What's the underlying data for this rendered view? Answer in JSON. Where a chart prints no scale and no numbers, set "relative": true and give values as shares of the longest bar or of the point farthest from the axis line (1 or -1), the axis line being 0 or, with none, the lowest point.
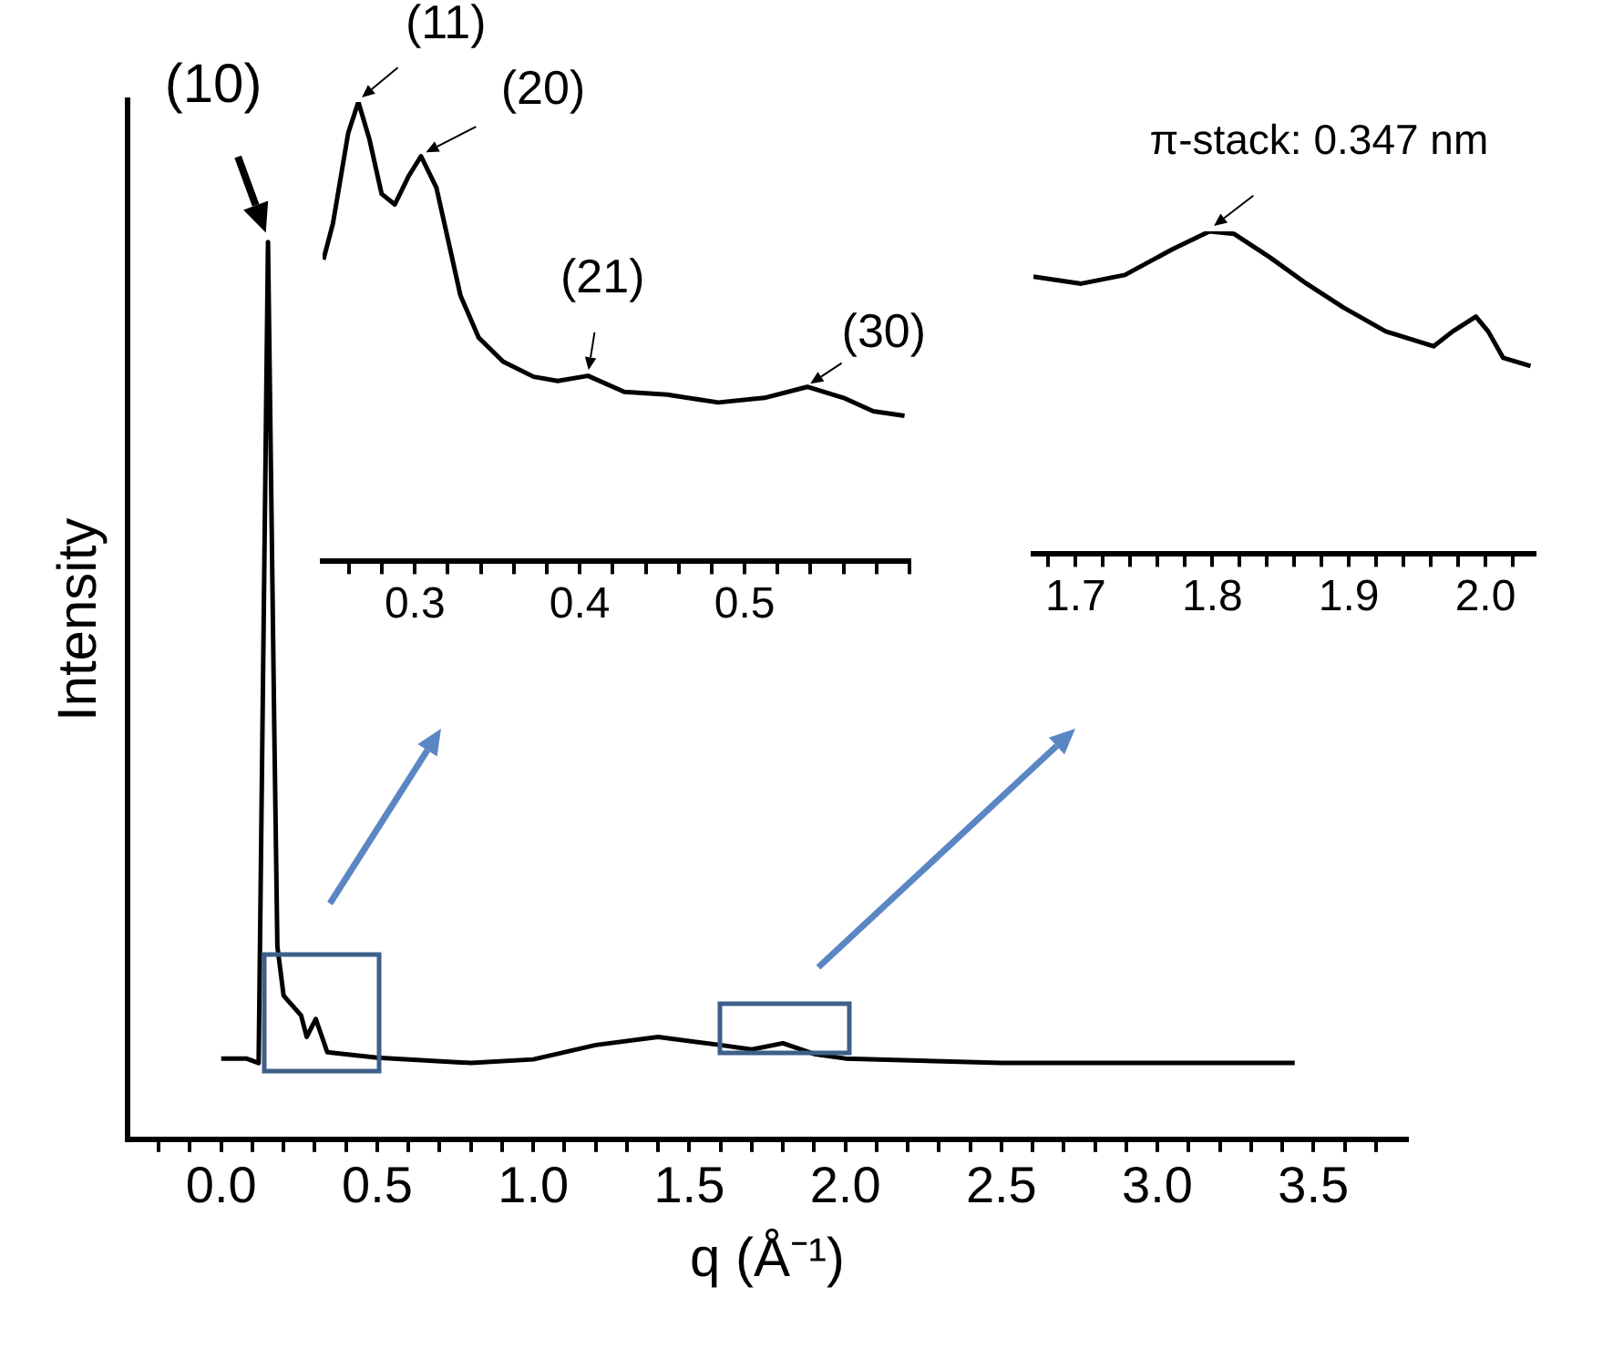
{
  "chart_data": [
    {
      "type": "line",
      "xlabel": "q (Å⁻¹)",
      "ylabel": "Intensity",
      "relative": true,
      "color": "#000000",
      "marker": "none",
      "x": [
        0.0,
        0.08,
        0.12,
        0.15,
        0.17,
        0.18,
        0.2,
        0.256,
        0.274,
        0.303,
        0.34,
        0.5,
        0.8,
        1.0,
        1.2,
        1.4,
        1.6,
        1.7,
        1.8,
        1.9,
        2.0,
        2.5,
        3.0,
        3.44
      ],
      "values": [
        0.09,
        0.09,
        0.085,
        1,
        0.46,
        0.215,
        0.16,
        0.138,
        0.114,
        0.134,
        0.097,
        0.091,
        0.085,
        0.089,
        0.105,
        0.114,
        0.105,
        0.1,
        0.107,
        0.095,
        0.09,
        0.085,
        0.085,
        0.085
      ],
      "xlim": [
        -0.3,
        3.8
      ],
      "xticks": [
        {
          "value": -0.2,
          "label": null
        },
        {
          "value": -0.1,
          "label": null
        },
        {
          "value": 0,
          "label": "0.0"
        },
        {
          "value": 0.1,
          "label": null
        },
        {
          "value": 0.2,
          "label": null
        },
        {
          "value": 0.3,
          "label": null
        },
        {
          "value": 0.4,
          "label": null
        },
        0.5,
        {
          "value": 0.6,
          "label": null
        },
        {
          "value": 0.7,
          "label": null
        },
        {
          "value": 0.8,
          "label": null
        },
        {
          "value": 0.9,
          "label": null
        },
        {
          "value": 1,
          "label": "1.0"
        },
        {
          "value": 1.1,
          "label": null
        },
        {
          "value": 1.2,
          "label": null
        },
        {
          "value": 1.3,
          "label": null
        },
        {
          "value": 1.4,
          "label": null
        },
        1.5,
        {
          "value": 1.6,
          "label": null
        },
        {
          "value": 1.7,
          "label": null
        },
        {
          "value": 1.8,
          "label": null
        },
        {
          "value": 1.9,
          "label": null
        },
        {
          "value": 2,
          "label": "2.0"
        },
        {
          "value": 2.1,
          "label": null
        },
        {
          "value": 2.2,
          "label": null
        },
        {
          "value": 2.3,
          "label": null
        },
        {
          "value": 2.4,
          "label": null
        },
        2.5,
        {
          "value": 2.6,
          "label": null
        },
        {
          "value": 2.7,
          "label": null
        },
        {
          "value": 2.8,
          "label": null
        },
        {
          "value": 2.9,
          "label": null
        },
        {
          "value": 3,
          "label": "3.0"
        },
        {
          "value": 3.1,
          "label": null
        },
        {
          "value": 3.2,
          "label": null
        },
        {
          "value": 3.3,
          "label": null
        },
        {
          "value": 3.4,
          "label": null
        },
        3.5,
        {
          "value": 3.6,
          "label": null
        },
        {
          "value": 3.7,
          "label": null
        }
      ],
      "annotations": [
        {
          "text": "(10)",
          "x": 0.15,
          "y": 1
        }
      ]
    },
    {
      "type": "line",
      "relative": true,
      "color": "#000000",
      "marker": "none",
      "x": [
        0.2445,
        0.2503,
        0.2595,
        0.2657,
        0.2724,
        0.2798,
        0.2878,
        0.2964,
        0.3037,
        0.313,
        0.3203,
        0.3276,
        0.3387,
        0.3535,
        0.372,
        0.3866,
        0.405,
        0.427,
        0.453,
        0.484,
        0.512,
        0.538,
        0.56,
        0.578,
        0.597
      ],
      "values": [
        0.657,
        0.736,
        0.932,
        1,
        0.919,
        0.8,
        0.777,
        0.84,
        0.882,
        0.814,
        0.697,
        0.579,
        0.487,
        0.435,
        0.402,
        0.393,
        0.404,
        0.369,
        0.363,
        0.346,
        0.356,
        0.38,
        0.356,
        0.327,
        0.317
      ],
      "xlim": [
        0.244,
        0.6
      ],
      "xticks": [
        {
          "value": 0.26,
          "label": null
        },
        {
          "value": 0.28,
          "label": null
        },
        0.3,
        {
          "value": 0.32,
          "label": null
        },
        {
          "value": 0.34,
          "label": null
        },
        {
          "value": 0.36,
          "label": null
        },
        {
          "value": 0.38,
          "label": null
        },
        0.4,
        {
          "value": 0.42,
          "label": null
        },
        {
          "value": 0.44,
          "label": null
        },
        {
          "value": 0.46,
          "label": null
        },
        {
          "value": 0.48,
          "label": null
        },
        0.5,
        {
          "value": 0.52,
          "label": null
        },
        {
          "value": 0.54,
          "label": null
        },
        {
          "value": 0.56,
          "label": null
        },
        {
          "value": 0.58,
          "label": null
        },
        {
          "value": 0.6,
          "label": null
        }
      ],
      "annotations": [
        {
          "text": "(11)",
          "x": 0.2657,
          "y": 1
        },
        {
          "text": "(20)",
          "x": 0.3037,
          "y": 0.882
        },
        {
          "text": "(21)",
          "x": 0.405,
          "y": 0.404
        },
        {
          "text": "(30)",
          "x": 0.538,
          "y": 0.38
        }
      ]
    },
    {
      "type": "line",
      "relative": true,
      "color": "#000000",
      "marker": "none",
      "x": [
        1.669,
        1.704,
        1.736,
        1.771,
        1.798,
        1.816,
        1.842,
        1.869,
        1.896,
        1.927,
        1.962,
        1.976,
        1.993,
        2.002,
        2.013,
        2.033
      ],
      "values": [
        0.86,
        0.838,
        0.865,
        0.945,
        1,
        0.992,
        0.92,
        0.838,
        0.764,
        0.69,
        0.644,
        0.69,
        0.736,
        0.69,
        0.608,
        0.583
      ],
      "xlim": [
        1.669,
        2.036
      ],
      "xticks": [
        {
          "value": 1.68,
          "label": null
        },
        1.7,
        {
          "value": 1.72,
          "label": null
        },
        {
          "value": 1.74,
          "label": null
        },
        {
          "value": 1.76,
          "label": null
        },
        {
          "value": 1.78,
          "label": null
        },
        1.8,
        {
          "value": 1.82,
          "label": null
        },
        {
          "value": 1.84,
          "label": null
        },
        {
          "value": 1.86,
          "label": null
        },
        {
          "value": 1.88,
          "label": null
        },
        1.9,
        {
          "value": 1.92,
          "label": null
        },
        {
          "value": 1.94,
          "label": null
        },
        {
          "value": 1.96,
          "label": null
        },
        {
          "value": 1.98,
          "label": null
        },
        {
          "value": 2,
          "label": "2.0"
        },
        {
          "value": 2.02,
          "label": null
        }
      ],
      "annotations": [
        {
          "text": "π-stack: 0.347 nm",
          "x": 1.798,
          "y": 1
        }
      ]
    }
  ]
}
